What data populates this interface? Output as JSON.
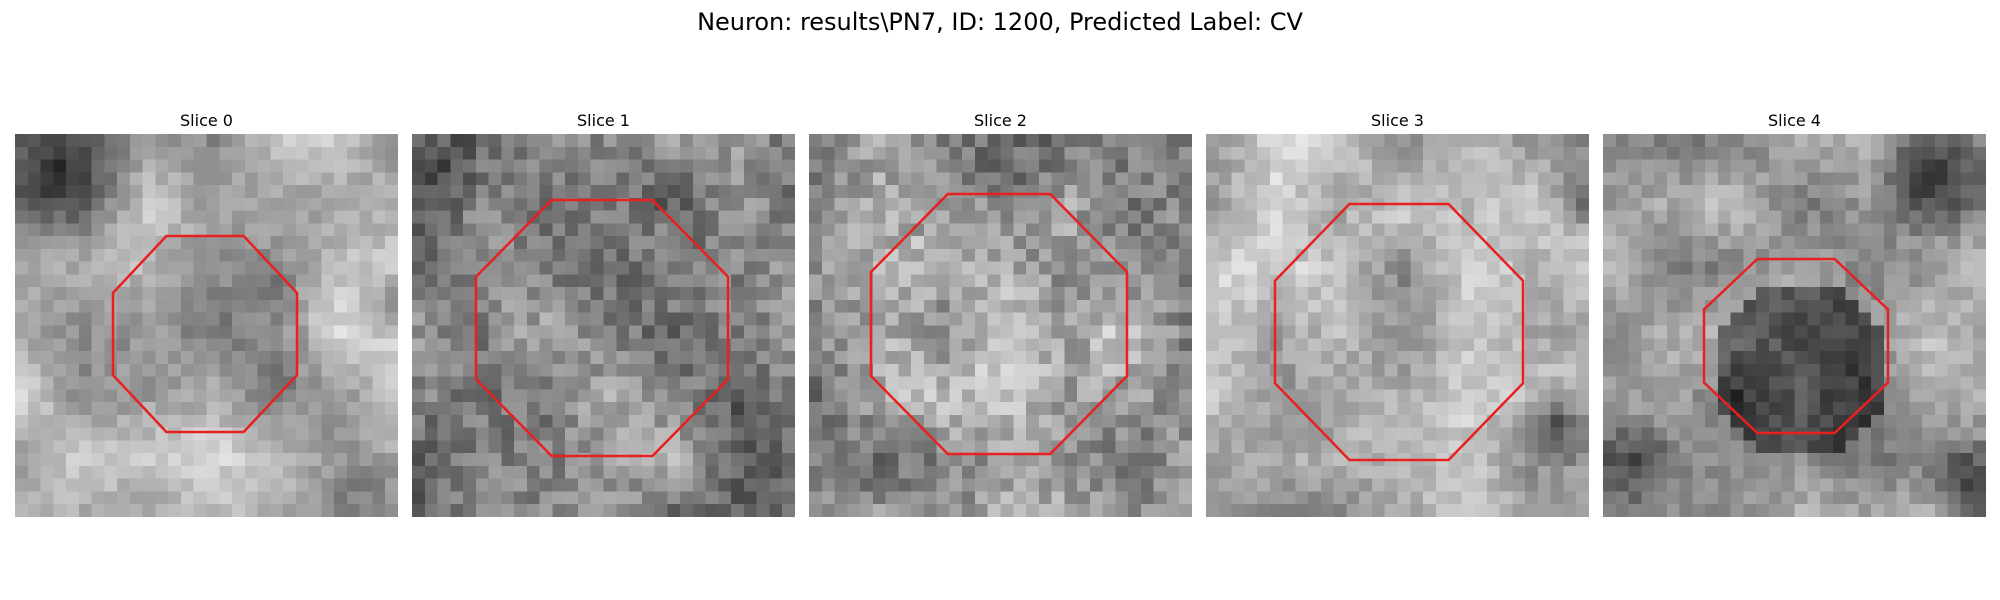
{
  "figure": {
    "title": "Neuron: results\\PN7, ID: 1200, Predicted Label: CV"
  },
  "style": {
    "contour_color": "#e8201f",
    "background": "#ffffff",
    "colormap": "gray"
  },
  "slices": [
    {
      "title": "Slice 0"
    },
    {
      "title": "Slice 1"
    },
    {
      "title": "Slice 2"
    },
    {
      "title": "Slice 3"
    },
    {
      "title": "Slice 4"
    }
  ]
}
